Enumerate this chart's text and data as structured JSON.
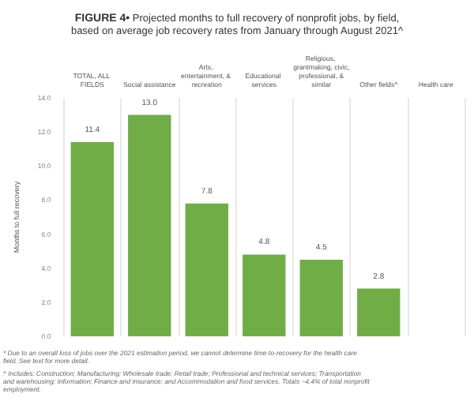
{
  "chart_data": {
    "type": "bar",
    "title": "FIGURE 4• Projected months to full recovery of nonprofit jobs, by field, based on average job recovery rates from January through August 2021^",
    "categories": [
      "TOTAL, ALL FIELDS",
      "Social assistance",
      "Arts, entertainment, & recreation",
      "Educational services",
      "Religious, grantmaking, civic, professional, & similar",
      "Other fields^",
      "Health care"
    ],
    "values": [
      11.4,
      13.0,
      7.8,
      4.8,
      4.5,
      2.8,
      null
    ],
    "color": "#70ad47",
    "ylabel": "Months to full recovery",
    "ylim": [
      0,
      14
    ],
    "yticks": [
      {
        "value": 0,
        "label": "0.0"
      },
      {
        "value": 2,
        "label": "2.0"
      },
      {
        "value": 4,
        "label": "4.0"
      },
      {
        "value": 6,
        "label": "6.0"
      },
      {
        "value": 8,
        "label": "8.0"
      },
      {
        "value": 10,
        "label": "10.0"
      },
      {
        "value": 12,
        "label": "12.0"
      },
      {
        "value": 14,
        "label": "14.0"
      }
    ],
    "value_labels": [
      "11.4",
      "13.0",
      "7.8",
      "4.8",
      "4.5",
      "2.8",
      null
    ],
    "grid": "x",
    "annotations": [
      "* Due to an overall loss of jobs over the 2021 estimation period, we cannot determine time-to-recovery for the health care field. See text for more detail.",
      "^ Includes: Construction; Manufacturing; Wholesale trade; Retail trade; Professional and technical services; Transportation and warehousing; Information; Finance and insurance; and Accommodation and food services. Totals ~4.4% of total nonprofit employment."
    ]
  }
}
